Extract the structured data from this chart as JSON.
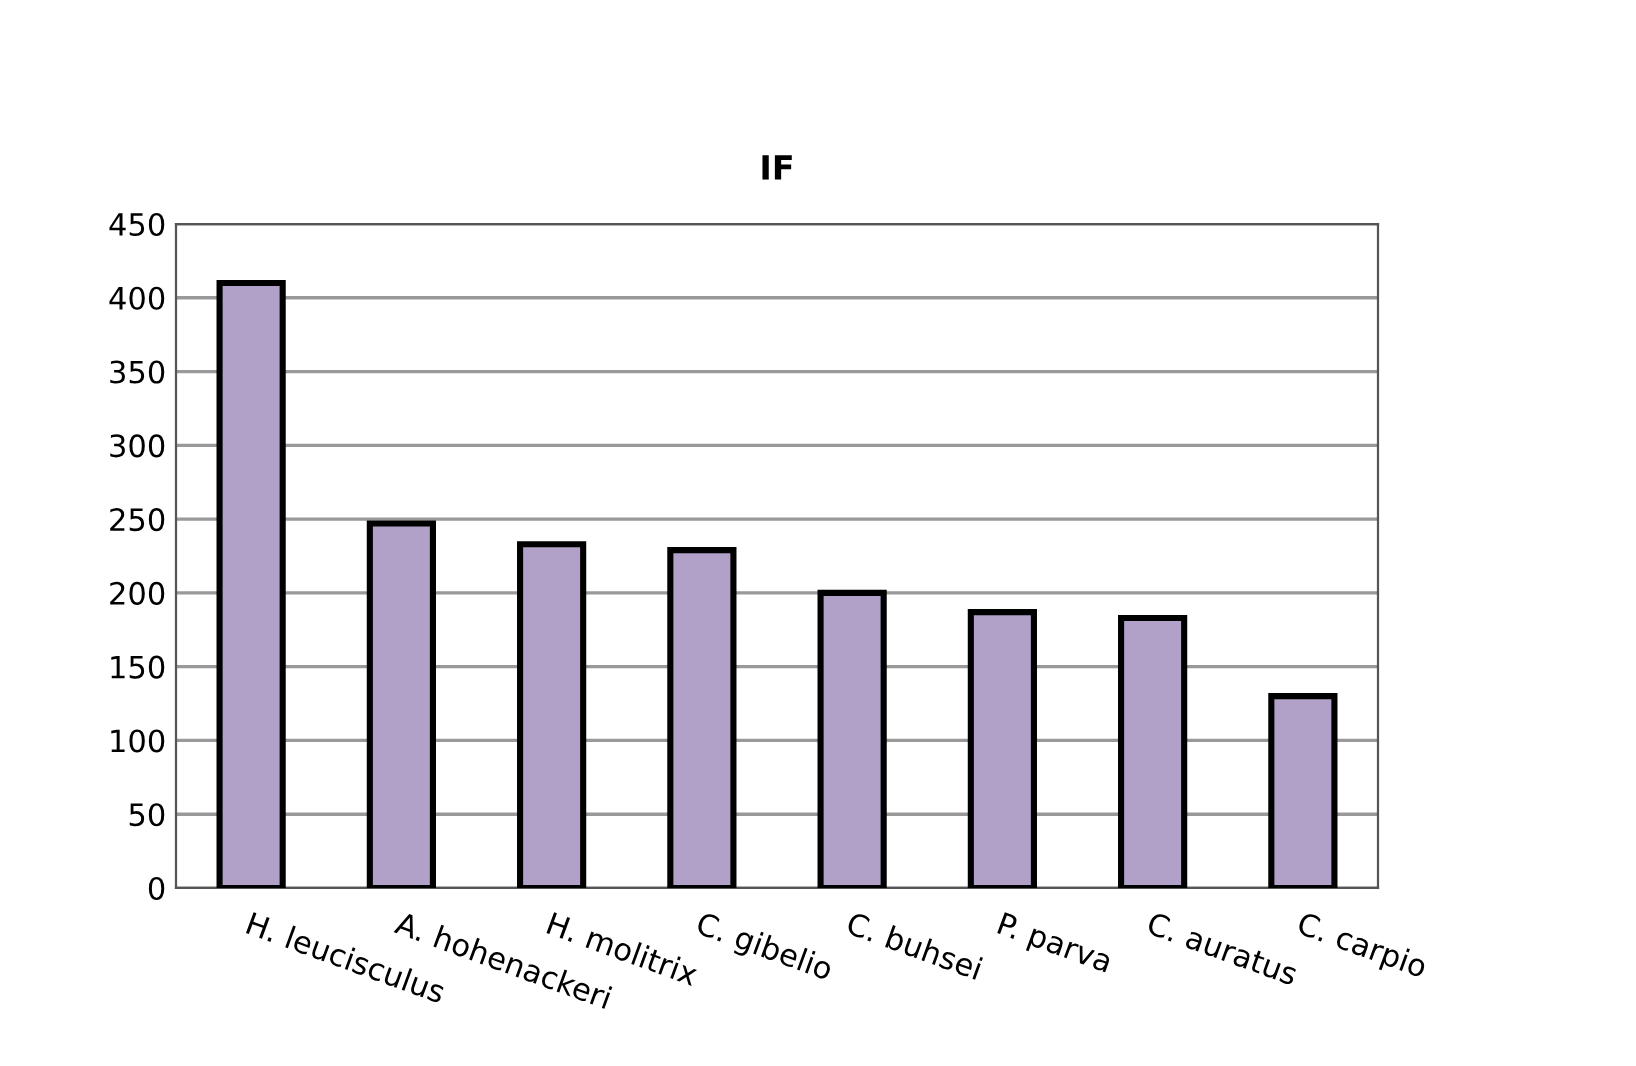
{
  "chart_data": {
    "type": "bar",
    "title": "IF",
    "categories": [
      "H. leucisculus",
      "A. hohenackeri",
      "H. molitrix",
      "C. gibelio",
      "C. buhsei",
      "P. parva",
      "C. auratus",
      "C. carpio"
    ],
    "values": [
      410,
      247,
      233,
      229,
      200,
      187,
      183,
      130
    ],
    "color": "#b1a0c7",
    "ylim": [
      0,
      450
    ],
    "yticks": [
      0,
      50,
      100,
      150,
      200,
      250,
      300,
      350,
      400,
      450
    ],
    "grid": "y",
    "legend": false
  }
}
